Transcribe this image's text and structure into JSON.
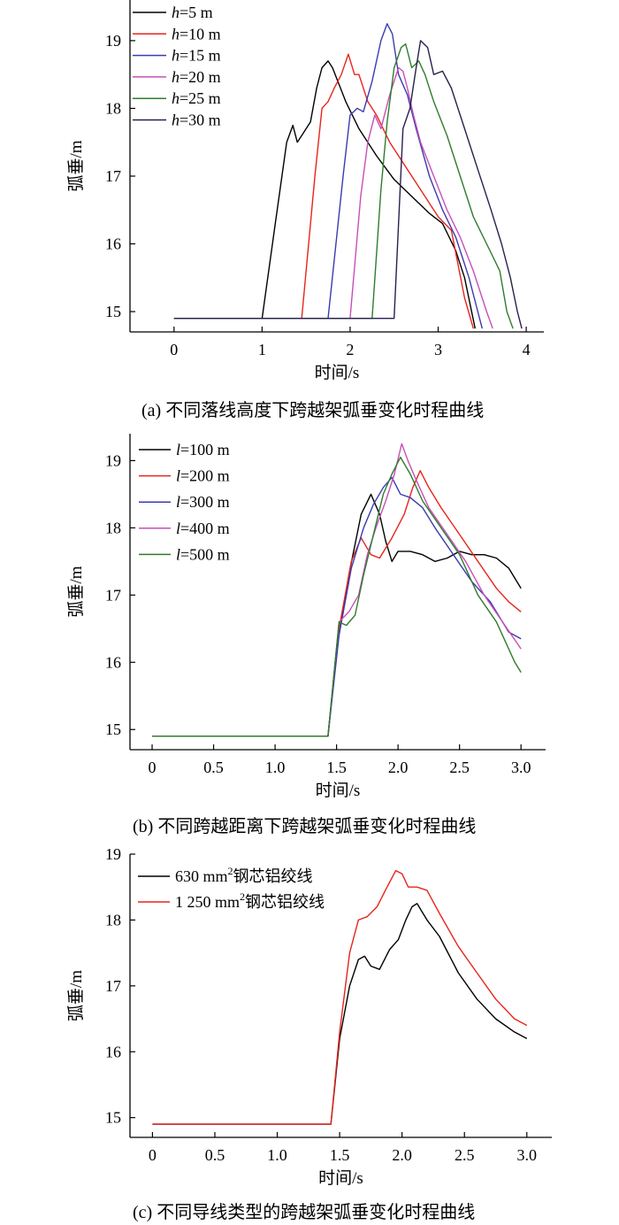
{
  "chart_data": [
    {
      "type": "line",
      "caption": "(a)  不同落线高度下跨越架弧垂变化时程曲线",
      "xlabel": "时间/s",
      "ylabel": "弧垂/m",
      "xlim": [
        -0.5,
        4.2
      ],
      "ylim": [
        14.7,
        19.6
      ],
      "xticks": [
        0,
        1,
        2,
        3,
        4
      ],
      "xtick_labels": [
        "0",
        "1",
        "2",
        "3",
        "4"
      ],
      "yticks": [
        15,
        16,
        17,
        18,
        19
      ],
      "ytick_labels": [
        "15",
        "16",
        "17",
        "18",
        "19"
      ],
      "legend_position": "top-left",
      "series": [
        {
          "name": "h=5 m",
          "italic_prefix": "h",
          "name_rest": "=5 m",
          "color": "#000000",
          "x": [
            0,
            1.0,
            1.15,
            1.28,
            1.35,
            1.4,
            1.45,
            1.55,
            1.62,
            1.68,
            1.75,
            1.8,
            1.95,
            2.1,
            2.3,
            2.5,
            2.7,
            2.9,
            3.05,
            3.2,
            3.3,
            3.42
          ],
          "y": [
            14.9,
            14.9,
            16.3,
            17.5,
            17.75,
            17.5,
            17.6,
            17.8,
            18.3,
            18.6,
            18.7,
            18.6,
            18.1,
            17.7,
            17.3,
            16.95,
            16.7,
            16.45,
            16.3,
            15.9,
            15.5,
            14.75
          ]
        },
        {
          "name": "h=10 m",
          "italic_prefix": "h",
          "name_rest": "=10 m",
          "color": "#e8241c",
          "x": [
            0,
            1.45,
            1.6,
            1.68,
            1.75,
            1.82,
            1.9,
            1.98,
            2.05,
            2.1,
            2.2,
            2.3,
            2.45,
            2.6,
            2.8,
            3.0,
            3.15,
            3.3,
            3.4
          ],
          "y": [
            14.9,
            14.9,
            17.0,
            18.0,
            18.1,
            18.3,
            18.5,
            18.8,
            18.5,
            18.5,
            18.1,
            17.9,
            17.5,
            17.2,
            16.8,
            16.4,
            16.2,
            15.2,
            14.75
          ]
        },
        {
          "name": "h=15 m",
          "italic_prefix": "h",
          "name_rest": "=15 m",
          "color": "#3b3bb0",
          "x": [
            0,
            1.75,
            1.92,
            2.0,
            2.08,
            2.15,
            2.25,
            2.35,
            2.42,
            2.48,
            2.55,
            2.65,
            2.75,
            2.9,
            3.05,
            3.2,
            3.35,
            3.45,
            3.5
          ],
          "y": [
            14.9,
            14.9,
            17.0,
            17.9,
            18.0,
            17.95,
            18.4,
            19.0,
            19.25,
            19.1,
            18.5,
            18.2,
            17.7,
            17.0,
            16.5,
            16.1,
            15.5,
            15.0,
            14.75
          ]
        },
        {
          "name": "h=20 m",
          "italic_prefix": "h",
          "name_rest": "=20 m",
          "color": "#c84fb8",
          "x": [
            0,
            2.0,
            2.12,
            2.2,
            2.28,
            2.35,
            2.45,
            2.55,
            2.6,
            2.65,
            2.72,
            2.8,
            2.95,
            3.1,
            3.25,
            3.4,
            3.55,
            3.62
          ],
          "y": [
            14.9,
            14.9,
            16.7,
            17.5,
            17.9,
            17.7,
            18.2,
            18.6,
            18.55,
            18.3,
            17.9,
            17.5,
            17.0,
            16.5,
            16.1,
            15.6,
            15.0,
            14.75
          ]
        },
        {
          "name": "h=25 m",
          "italic_prefix": "h",
          "name_rest": "=25 m",
          "color": "#2e7d2e",
          "x": [
            0,
            2.25,
            2.35,
            2.42,
            2.5,
            2.58,
            2.63,
            2.7,
            2.78,
            2.85,
            2.95,
            3.1,
            3.25,
            3.4,
            3.55,
            3.7,
            3.78,
            3.85
          ],
          "y": [
            14.9,
            14.9,
            16.8,
            17.8,
            18.6,
            18.9,
            18.95,
            18.6,
            18.7,
            18.5,
            18.1,
            17.6,
            17.0,
            16.4,
            16.0,
            15.6,
            15.0,
            14.75
          ]
        },
        {
          "name": "h=30 m",
          "italic_prefix": "h",
          "name_rest": "=30 m",
          "color": "#2a1f4e",
          "x": [
            0,
            2.5,
            2.6,
            2.68,
            2.75,
            2.8,
            2.88,
            2.95,
            3.05,
            3.15,
            3.3,
            3.45,
            3.6,
            3.72,
            3.82,
            3.9,
            3.95
          ],
          "y": [
            14.9,
            14.9,
            17.7,
            18.0,
            18.6,
            19.0,
            18.9,
            18.5,
            18.55,
            18.3,
            17.7,
            17.1,
            16.5,
            16.0,
            15.5,
            15.0,
            14.75
          ]
        }
      ]
    },
    {
      "type": "line",
      "caption": "(b)  不同跨越距离下跨越架弧垂变化时程曲线",
      "xlabel": "时间/s",
      "ylabel": "弧垂/m",
      "xlim": [
        -0.18,
        3.2
      ],
      "ylim": [
        14.7,
        19.4
      ],
      "xticks": [
        0,
        0.5,
        1.0,
        1.5,
        2.0,
        2.5,
        3.0
      ],
      "xtick_labels": [
        "0",
        "0.5",
        "1.0",
        "1.5",
        "2.0",
        "2.5",
        "3.0"
      ],
      "yticks": [
        15,
        16,
        17,
        18,
        19
      ],
      "ytick_labels": [
        "15",
        "16",
        "17",
        "18",
        "19"
      ],
      "legend_position": "top-left",
      "series": [
        {
          "name": "l=100 m",
          "italic_prefix": "l",
          "name_rest": "=100 m",
          "color": "#000000",
          "x": [
            0,
            1.43,
            1.5,
            1.6,
            1.7,
            1.78,
            1.85,
            1.9,
            1.95,
            2.0,
            2.1,
            2.2,
            2.3,
            2.4,
            2.5,
            2.6,
            2.7,
            2.8,
            2.9,
            3.0
          ],
          "y": [
            14.9,
            14.9,
            16.2,
            17.3,
            18.2,
            18.5,
            18.2,
            17.8,
            17.5,
            17.65,
            17.65,
            17.6,
            17.5,
            17.55,
            17.65,
            17.6,
            17.6,
            17.55,
            17.4,
            17.1
          ]
        },
        {
          "name": "l=200 m",
          "italic_prefix": "l",
          "name_rest": "=200 m",
          "color": "#e8241c",
          "x": [
            0,
            1.43,
            1.52,
            1.62,
            1.7,
            1.78,
            1.85,
            1.95,
            2.05,
            2.12,
            2.18,
            2.25,
            2.35,
            2.5,
            2.65,
            2.8,
            2.9,
            3.0
          ],
          "y": [
            14.9,
            14.9,
            16.5,
            17.5,
            17.85,
            17.6,
            17.55,
            17.85,
            18.2,
            18.6,
            18.85,
            18.6,
            18.3,
            17.9,
            17.5,
            17.1,
            16.9,
            16.75
          ]
        },
        {
          "name": "l=300 m",
          "italic_prefix": "l",
          "name_rest": "=300 m",
          "color": "#3b3bb0",
          "x": [
            0,
            1.43,
            1.52,
            1.62,
            1.72,
            1.8,
            1.88,
            1.95,
            2.02,
            2.1,
            2.2,
            2.3,
            2.45,
            2.6,
            2.75,
            2.9,
            3.0
          ],
          "y": [
            14.9,
            14.9,
            16.4,
            17.4,
            18.0,
            18.35,
            18.6,
            18.75,
            18.5,
            18.45,
            18.3,
            18.0,
            17.6,
            17.2,
            16.9,
            16.45,
            16.35
          ]
        },
        {
          "name": "l=400 m",
          "italic_prefix": "l",
          "name_rest": "=400 m",
          "color": "#c84fb8",
          "x": [
            0,
            1.43,
            1.52,
            1.6,
            1.68,
            1.75,
            1.82,
            1.9,
            1.97,
            2.03,
            2.08,
            2.15,
            2.25,
            2.4,
            2.55,
            2.7,
            2.85,
            3.0
          ],
          "y": [
            14.9,
            14.9,
            16.6,
            16.75,
            17.0,
            17.6,
            18.0,
            18.4,
            18.8,
            19.25,
            19.0,
            18.7,
            18.3,
            17.9,
            17.5,
            17.0,
            16.6,
            16.2
          ]
        },
        {
          "name": "l=500 m",
          "italic_prefix": "l",
          "name_rest": "=500 m",
          "color": "#2e7d2e",
          "x": [
            0,
            1.43,
            1.52,
            1.58,
            1.65,
            1.72,
            1.8,
            1.88,
            1.95,
            2.02,
            2.1,
            2.2,
            2.35,
            2.5,
            2.65,
            2.8,
            2.95,
            3.0
          ],
          "y": [
            14.9,
            14.9,
            16.6,
            16.55,
            16.7,
            17.3,
            17.9,
            18.5,
            18.8,
            19.05,
            18.8,
            18.4,
            18.0,
            17.6,
            17.0,
            16.6,
            16.0,
            15.85
          ]
        }
      ]
    },
    {
      "type": "line",
      "caption": "(c)  不同导线类型的跨越架弧垂变化时程曲线",
      "xlabel": "时间/s",
      "ylabel": "弧垂/m",
      "xlim": [
        -0.18,
        3.2
      ],
      "ylim": [
        14.7,
        19.0
      ],
      "xticks": [
        0,
        0.5,
        1.0,
        1.5,
        2.0,
        2.5,
        3.0
      ],
      "xtick_labels": [
        "0",
        "0.5",
        "1.0",
        "1.5",
        "2.0",
        "2.5",
        "3.0"
      ],
      "yticks": [
        15,
        16,
        17,
        18,
        19
      ],
      "ytick_labels": [
        "15",
        "16",
        "17",
        "18",
        "19"
      ],
      "legend_position": "top-left",
      "series": [
        {
          "name": "630 mm²钢芯铝绞线",
          "label_main": "630 mm",
          "label_sup": "2",
          "label_tail": "钢芯铝绞线",
          "color": "#000000",
          "x": [
            0,
            1.43,
            1.5,
            1.58,
            1.65,
            1.7,
            1.75,
            1.82,
            1.9,
            1.97,
            2.03,
            2.08,
            2.12,
            2.2,
            2.3,
            2.45,
            2.6,
            2.75,
            2.9,
            3.0
          ],
          "y": [
            14.9,
            14.9,
            16.2,
            17.0,
            17.4,
            17.45,
            17.3,
            17.25,
            17.55,
            17.7,
            18.0,
            18.2,
            18.25,
            18.0,
            17.75,
            17.2,
            16.8,
            16.5,
            16.3,
            16.2
          ]
        },
        {
          "name": "1 250 mm²钢芯铝绞线",
          "label_main": "1 250 mm",
          "label_sup": "2",
          "label_tail": "钢芯铝绞线",
          "color": "#e8241c",
          "x": [
            0,
            1.43,
            1.5,
            1.58,
            1.65,
            1.72,
            1.8,
            1.88,
            1.95,
            2.0,
            2.05,
            2.12,
            2.2,
            2.3,
            2.45,
            2.6,
            2.75,
            2.9,
            3.0
          ],
          "y": [
            14.9,
            14.9,
            16.3,
            17.5,
            18.0,
            18.05,
            18.2,
            18.5,
            18.75,
            18.7,
            18.5,
            18.5,
            18.45,
            18.1,
            17.6,
            17.2,
            16.8,
            16.5,
            16.4
          ]
        }
      ]
    }
  ]
}
